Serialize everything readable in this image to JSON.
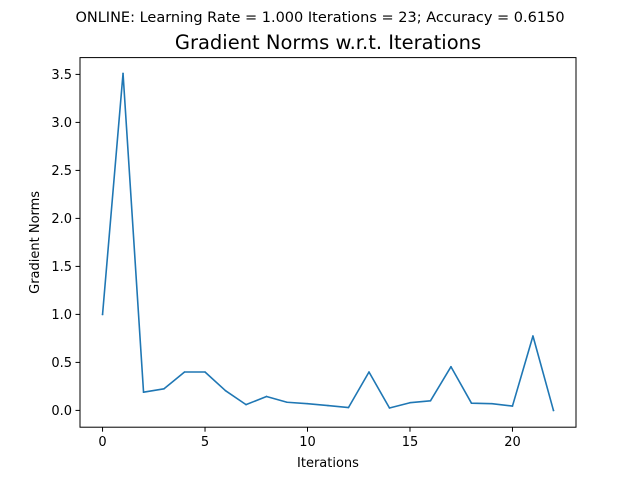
{
  "figure": {
    "suptitle": "ONLINE: Learning Rate = 1.000 Iterations = 23; Accuracy = 0.6150"
  },
  "chart_data": {
    "type": "line",
    "title": "Gradient Norms w.r.t. Iterations",
    "xlabel": "Iterations",
    "ylabel": "Gradient Norms",
    "xlim": [
      -1.1,
      23.1
    ],
    "ylim": [
      -0.175,
      3.675
    ],
    "xticks": [
      0,
      5,
      10,
      15,
      20
    ],
    "xtick_labels": [
      "0",
      "5",
      "10",
      "15",
      "20"
    ],
    "yticks": [
      0.0,
      0.5,
      1.0,
      1.5,
      2.0,
      2.5,
      3.0,
      3.5
    ],
    "ytick_labels": [
      "0.0",
      "0.5",
      "1.0",
      "1.5",
      "2.0",
      "2.5",
      "3.0",
      "3.5"
    ],
    "grid": false,
    "series": [
      {
        "color": "#1f77b4",
        "x": [
          0,
          1,
          2,
          3,
          4,
          5,
          6,
          7,
          8,
          9,
          10,
          11,
          12,
          13,
          14,
          15,
          16,
          17,
          18,
          19,
          20,
          21,
          22
        ],
        "values": [
          1.0,
          3.51,
          0.19,
          0.225,
          0.4,
          0.4,
          0.205,
          0.06,
          0.145,
          0.085,
          0.07,
          0.05,
          0.03,
          0.4,
          0.025,
          0.08,
          0.1,
          0.455,
          0.075,
          0.07,
          0.045,
          0.775,
          0.0
        ]
      }
    ]
  }
}
